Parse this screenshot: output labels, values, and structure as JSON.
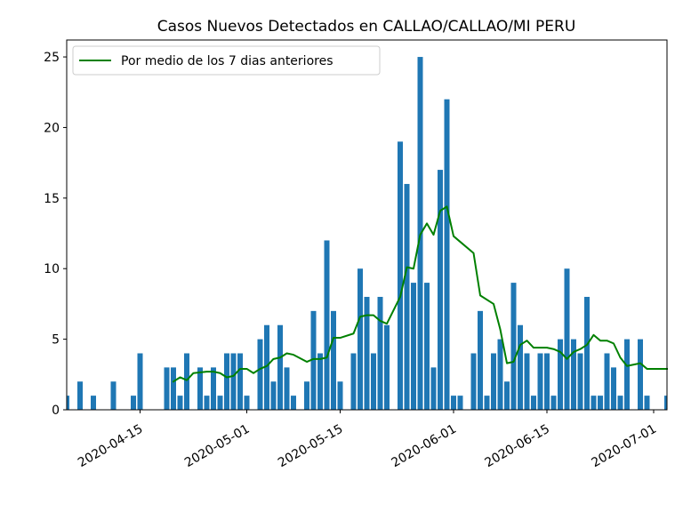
{
  "chart_data": {
    "type": "bar",
    "title": "Casos Nuevos Detectados en CALLAO/CALLAO/MI PERU",
    "xlabel": "",
    "ylabel": "",
    "ylim": [
      0,
      26.2
    ],
    "xlim": [
      "2020-04-04",
      "2020-07-03"
    ],
    "yticks": [
      0,
      5,
      10,
      15,
      20,
      25
    ],
    "xticks": [
      "2020-04-15",
      "2020-05-01",
      "2020-05-15",
      "2020-06-01",
      "2020-06-15",
      "2020-07-01"
    ],
    "grid": false,
    "legend_position": "top-left",
    "colors": {
      "bars": "#1f77b4",
      "line": "#008000"
    },
    "bars": {
      "dates": [
        "2020-04-04",
        "2020-04-06",
        "2020-04-08",
        "2020-04-11",
        "2020-04-14",
        "2020-04-15",
        "2020-04-19",
        "2020-04-20",
        "2020-04-21",
        "2020-04-22",
        "2020-04-24",
        "2020-04-25",
        "2020-04-26",
        "2020-04-27",
        "2020-04-28",
        "2020-04-29",
        "2020-04-30",
        "2020-05-01",
        "2020-05-03",
        "2020-05-04",
        "2020-05-05",
        "2020-05-06",
        "2020-05-07",
        "2020-05-08",
        "2020-05-10",
        "2020-05-11",
        "2020-05-12",
        "2020-05-13",
        "2020-05-14",
        "2020-05-15",
        "2020-05-17",
        "2020-05-18",
        "2020-05-19",
        "2020-05-20",
        "2020-05-21",
        "2020-05-22",
        "2020-05-24",
        "2020-05-25",
        "2020-05-26",
        "2020-05-27",
        "2020-05-28",
        "2020-05-29",
        "2020-05-30",
        "2020-05-31",
        "2020-06-01",
        "2020-06-02",
        "2020-06-04",
        "2020-06-05",
        "2020-06-06",
        "2020-06-07",
        "2020-06-08",
        "2020-06-09",
        "2020-06-10",
        "2020-06-11",
        "2020-06-12",
        "2020-06-13",
        "2020-06-14",
        "2020-06-15",
        "2020-06-16",
        "2020-06-17",
        "2020-06-18",
        "2020-06-19",
        "2020-06-20",
        "2020-06-21",
        "2020-06-22",
        "2020-06-23",
        "2020-06-24",
        "2020-06-25",
        "2020-06-26",
        "2020-06-27",
        "2020-06-29",
        "2020-06-30",
        "2020-07-03"
      ],
      "values": [
        1,
        2,
        1,
        2,
        1,
        4,
        3,
        3,
        1,
        4,
        3,
        1,
        3,
        1,
        4,
        4,
        4,
        1,
        5,
        6,
        2,
        6,
        3,
        1,
        2,
        7,
        4,
        12,
        7,
        2,
        4,
        10,
        8,
        4,
        8,
        6,
        19,
        16,
        9,
        25,
        9,
        3,
        17,
        22,
        1,
        1,
        4,
        7,
        1,
        4,
        5,
        2,
        9,
        6,
        4,
        1,
        4,
        4,
        1,
        5,
        10,
        5,
        4,
        8,
        1,
        1,
        4,
        3,
        1,
        5,
        5,
        1,
        1
      ]
    },
    "series": [
      {
        "name": "Por medio de los 7 dias anteriores",
        "x": [
          "2020-04-20",
          "2020-04-21",
          "2020-04-22",
          "2020-04-23",
          "2020-04-25",
          "2020-04-26",
          "2020-04-27",
          "2020-04-28",
          "2020-04-29",
          "2020-04-30",
          "2020-05-01",
          "2020-05-02",
          "2020-05-03",
          "2020-05-04",
          "2020-05-05",
          "2020-05-06",
          "2020-05-07",
          "2020-05-08",
          "2020-05-10",
          "2020-05-11",
          "2020-05-12",
          "2020-05-13",
          "2020-05-14",
          "2020-05-15",
          "2020-05-17",
          "2020-05-18",
          "2020-05-19",
          "2020-05-20",
          "2020-05-21",
          "2020-05-22",
          "2020-05-24",
          "2020-05-25",
          "2020-05-26",
          "2020-05-27",
          "2020-05-28",
          "2020-05-29",
          "2020-05-30",
          "2020-05-31",
          "2020-06-01",
          "2020-06-02",
          "2020-06-04",
          "2020-06-05",
          "2020-06-07",
          "2020-06-08",
          "2020-06-09",
          "2020-06-10",
          "2020-06-11",
          "2020-06-12",
          "2020-06-13",
          "2020-06-15",
          "2020-06-16",
          "2020-06-17",
          "2020-06-18",
          "2020-06-19",
          "2020-06-20",
          "2020-06-21",
          "2020-06-22",
          "2020-06-23",
          "2020-06-24",
          "2020-06-25",
          "2020-06-26",
          "2020-06-27",
          "2020-06-29",
          "2020-06-30",
          "2020-07-03"
        ],
        "values": [
          2.0,
          2.3,
          2.1,
          2.6,
          2.7,
          2.7,
          2.6,
          2.3,
          2.4,
          2.9,
          2.9,
          2.6,
          2.9,
          3.1,
          3.6,
          3.7,
          4.0,
          3.9,
          3.4,
          3.6,
          3.6,
          3.7,
          5.1,
          5.1,
          5.4,
          6.6,
          6.7,
          6.7,
          6.3,
          6.1,
          8.0,
          10.1,
          10.0,
          12.4,
          13.2,
          12.4,
          14.1,
          14.4,
          12.3,
          11.9,
          11.1,
          8.1,
          7.5,
          5.7,
          3.3,
          3.4,
          4.6,
          4.9,
          4.4,
          4.4,
          4.3,
          4.1,
          3.6,
          4.1,
          4.3,
          4.6,
          5.3,
          4.9,
          4.9,
          4.7,
          3.7,
          3.1,
          3.3,
          2.9,
          2.9
        ]
      }
    ]
  }
}
